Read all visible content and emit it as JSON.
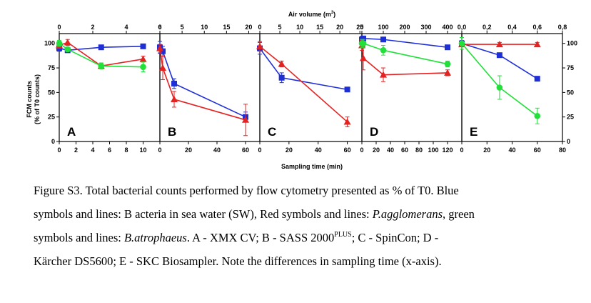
{
  "colors": {
    "blue": "#1f2fd6",
    "red": "#e52222",
    "green": "#22e03a",
    "axis": "#000000"
  },
  "labels": {
    "top_axis": "Air volume (m",
    "top_axis_sup": "3",
    "top_axis_end": ")",
    "bottom_axis": "Sampling time (min)",
    "y_axis_line1": "FCM counts",
    "y_axis_line2": "(% of T0 counts)"
  },
  "chart_data": [
    {
      "type": "line",
      "panel": "A",
      "xlim": [
        0,
        12
      ],
      "x_ticks": [
        "0",
        "2",
        "4",
        "6",
        "8",
        "10"
      ],
      "top_xlim": [
        0,
        6
      ],
      "top_ticks": [
        "0",
        "2",
        "4",
        "6"
      ],
      "ylim": [
        0,
        110
      ],
      "y_ticks": [
        "0",
        "25",
        "50",
        "75",
        "100"
      ],
      "series": [
        {
          "color": "blue",
          "marker": "square",
          "x": [
            0,
            1,
            5,
            10
          ],
          "y": [
            95,
            93,
            96,
            97
          ],
          "err": [
            3,
            2,
            2,
            2
          ]
        },
        {
          "color": "red",
          "marker": "triangle",
          "x": [
            0,
            1,
            5,
            10
          ],
          "y": [
            98,
            101,
            77,
            84
          ],
          "err": [
            3,
            3,
            3,
            3
          ]
        },
        {
          "color": "green",
          "marker": "circle",
          "x": [
            0,
            1,
            5,
            10
          ],
          "y": [
            100,
            94,
            77,
            76
          ],
          "err": [
            3,
            2,
            3,
            5
          ]
        }
      ]
    },
    {
      "type": "line",
      "panel": "B",
      "xlim": [
        0,
        70
      ],
      "x_ticks": [
        "0",
        "20",
        "40",
        "60"
      ],
      "top_xlim": [
        0,
        22.5
      ],
      "top_ticks": [
        "0",
        "5",
        "10",
        "15",
        "20"
      ],
      "ylim": [
        0,
        110
      ],
      "series": [
        {
          "color": "blue",
          "marker": "square",
          "x": [
            0,
            2,
            10,
            60
          ],
          "y": [
            96,
            92,
            59,
            25
          ],
          "err": [
            6,
            5,
            5,
            5
          ]
        },
        {
          "color": "red",
          "marker": "triangle",
          "x": [
            0,
            2,
            10,
            60
          ],
          "y": [
            95,
            75,
            43,
            22
          ],
          "err": [
            4,
            12,
            8,
            16
          ]
        },
        {
          "color": "green",
          "marker": "circle",
          "x": [],
          "y": [],
          "err": []
        }
      ]
    },
    {
      "type": "line",
      "panel": "C",
      "xlim": [
        0,
        70
      ],
      "x_ticks": [
        "0",
        "20",
        "40",
        "60"
      ],
      "top_xlim": [
        0,
        25.5
      ],
      "top_ticks": [
        "0",
        "5",
        "10",
        "15",
        "20",
        "25"
      ],
      "ylim": [
        0,
        110
      ],
      "series": [
        {
          "color": "blue",
          "marker": "square",
          "x": [
            0,
            15,
            60
          ],
          "y": [
            95,
            65,
            53
          ],
          "err": [
            6,
            5,
            2
          ]
        },
        {
          "color": "red",
          "marker": "triangle",
          "x": [
            0,
            15,
            60
          ],
          "y": [
            97,
            79,
            20
          ],
          "err": [
            5,
            3,
            5
          ]
        },
        {
          "color": "green",
          "marker": "circle",
          "x": [],
          "y": [],
          "err": []
        }
      ]
    },
    {
      "type": "line",
      "panel": "D",
      "xlim": [
        0,
        140
      ],
      "x_ticks": [
        "0",
        "20",
        "40",
        "60",
        "80",
        "100",
        "120"
      ],
      "top_xlim": [
        0,
        466.7
      ],
      "top_ticks": [
        "0",
        "100",
        "200",
        "300",
        "400"
      ],
      "ylim": [
        0,
        110
      ],
      "series": [
        {
          "color": "blue",
          "marker": "square",
          "x": [
            0,
            2,
            30,
            120
          ],
          "y": [
            104,
            105,
            104,
            96
          ],
          "err": [
            3,
            2,
            2,
            2
          ]
        },
        {
          "color": "red",
          "marker": "triangle",
          "x": [
            0,
            2,
            30,
            120
          ],
          "y": [
            98,
            85,
            68,
            70
          ],
          "err": [
            5,
            12,
            7,
            3
          ]
        },
        {
          "color": "green",
          "marker": "circle",
          "x": [
            0,
            2,
            30,
            120
          ],
          "y": [
            100,
            100,
            93,
            79
          ],
          "err": [
            4,
            4,
            5,
            3
          ]
        }
      ]
    },
    {
      "type": "line",
      "panel": "E",
      "xlim": [
        0,
        80
      ],
      "x_ticks": [
        "0",
        "20",
        "40",
        "60",
        "80"
      ],
      "top_xlim": [
        0,
        0.8
      ],
      "top_ticks": [
        "0,0",
        "0,2",
        "0,4",
        "0,6",
        "0,8"
      ],
      "ylim": [
        0,
        110
      ],
      "y_ticks": [
        "0",
        "25",
        "50",
        "75",
        "100"
      ],
      "series": [
        {
          "color": "blue",
          "marker": "square",
          "x": [
            0,
            30,
            60
          ],
          "y": [
            100,
            88,
            64
          ],
          "err": [
            3,
            2,
            2
          ]
        },
        {
          "color": "red",
          "marker": "triangle",
          "x": [
            0,
            30,
            60
          ],
          "y": [
            99,
            99,
            99
          ],
          "err": [
            2,
            2,
            2
          ]
        },
        {
          "color": "green",
          "marker": "circle",
          "x": [
            0,
            30,
            60
          ],
          "y": [
            100,
            55,
            26
          ],
          "err": [
            6,
            12,
            8
          ]
        }
      ]
    }
  ],
  "caption": {
    "l1": "Figure S3.  Total bacterial counts performed by flow cytometry presented as % of T0.   Blue",
    "l2a": "symbols and lines: B acteria in sea water (SW), Red symbols and lines: ",
    "l2b": "P.agglomerans",
    "l2c": ", green",
    "l3a": "symbols and lines: ",
    "l3b": "B.atrophaeus",
    "l3c": ". A - XMX CV; B - SASS 2000",
    "l3d": "PLUS",
    "l3e": "; C - SpinCon; D -",
    "l4": "Kärcher DS5600; E - SKC Biosampler. Note the differences in sampling time (x-axis)."
  }
}
